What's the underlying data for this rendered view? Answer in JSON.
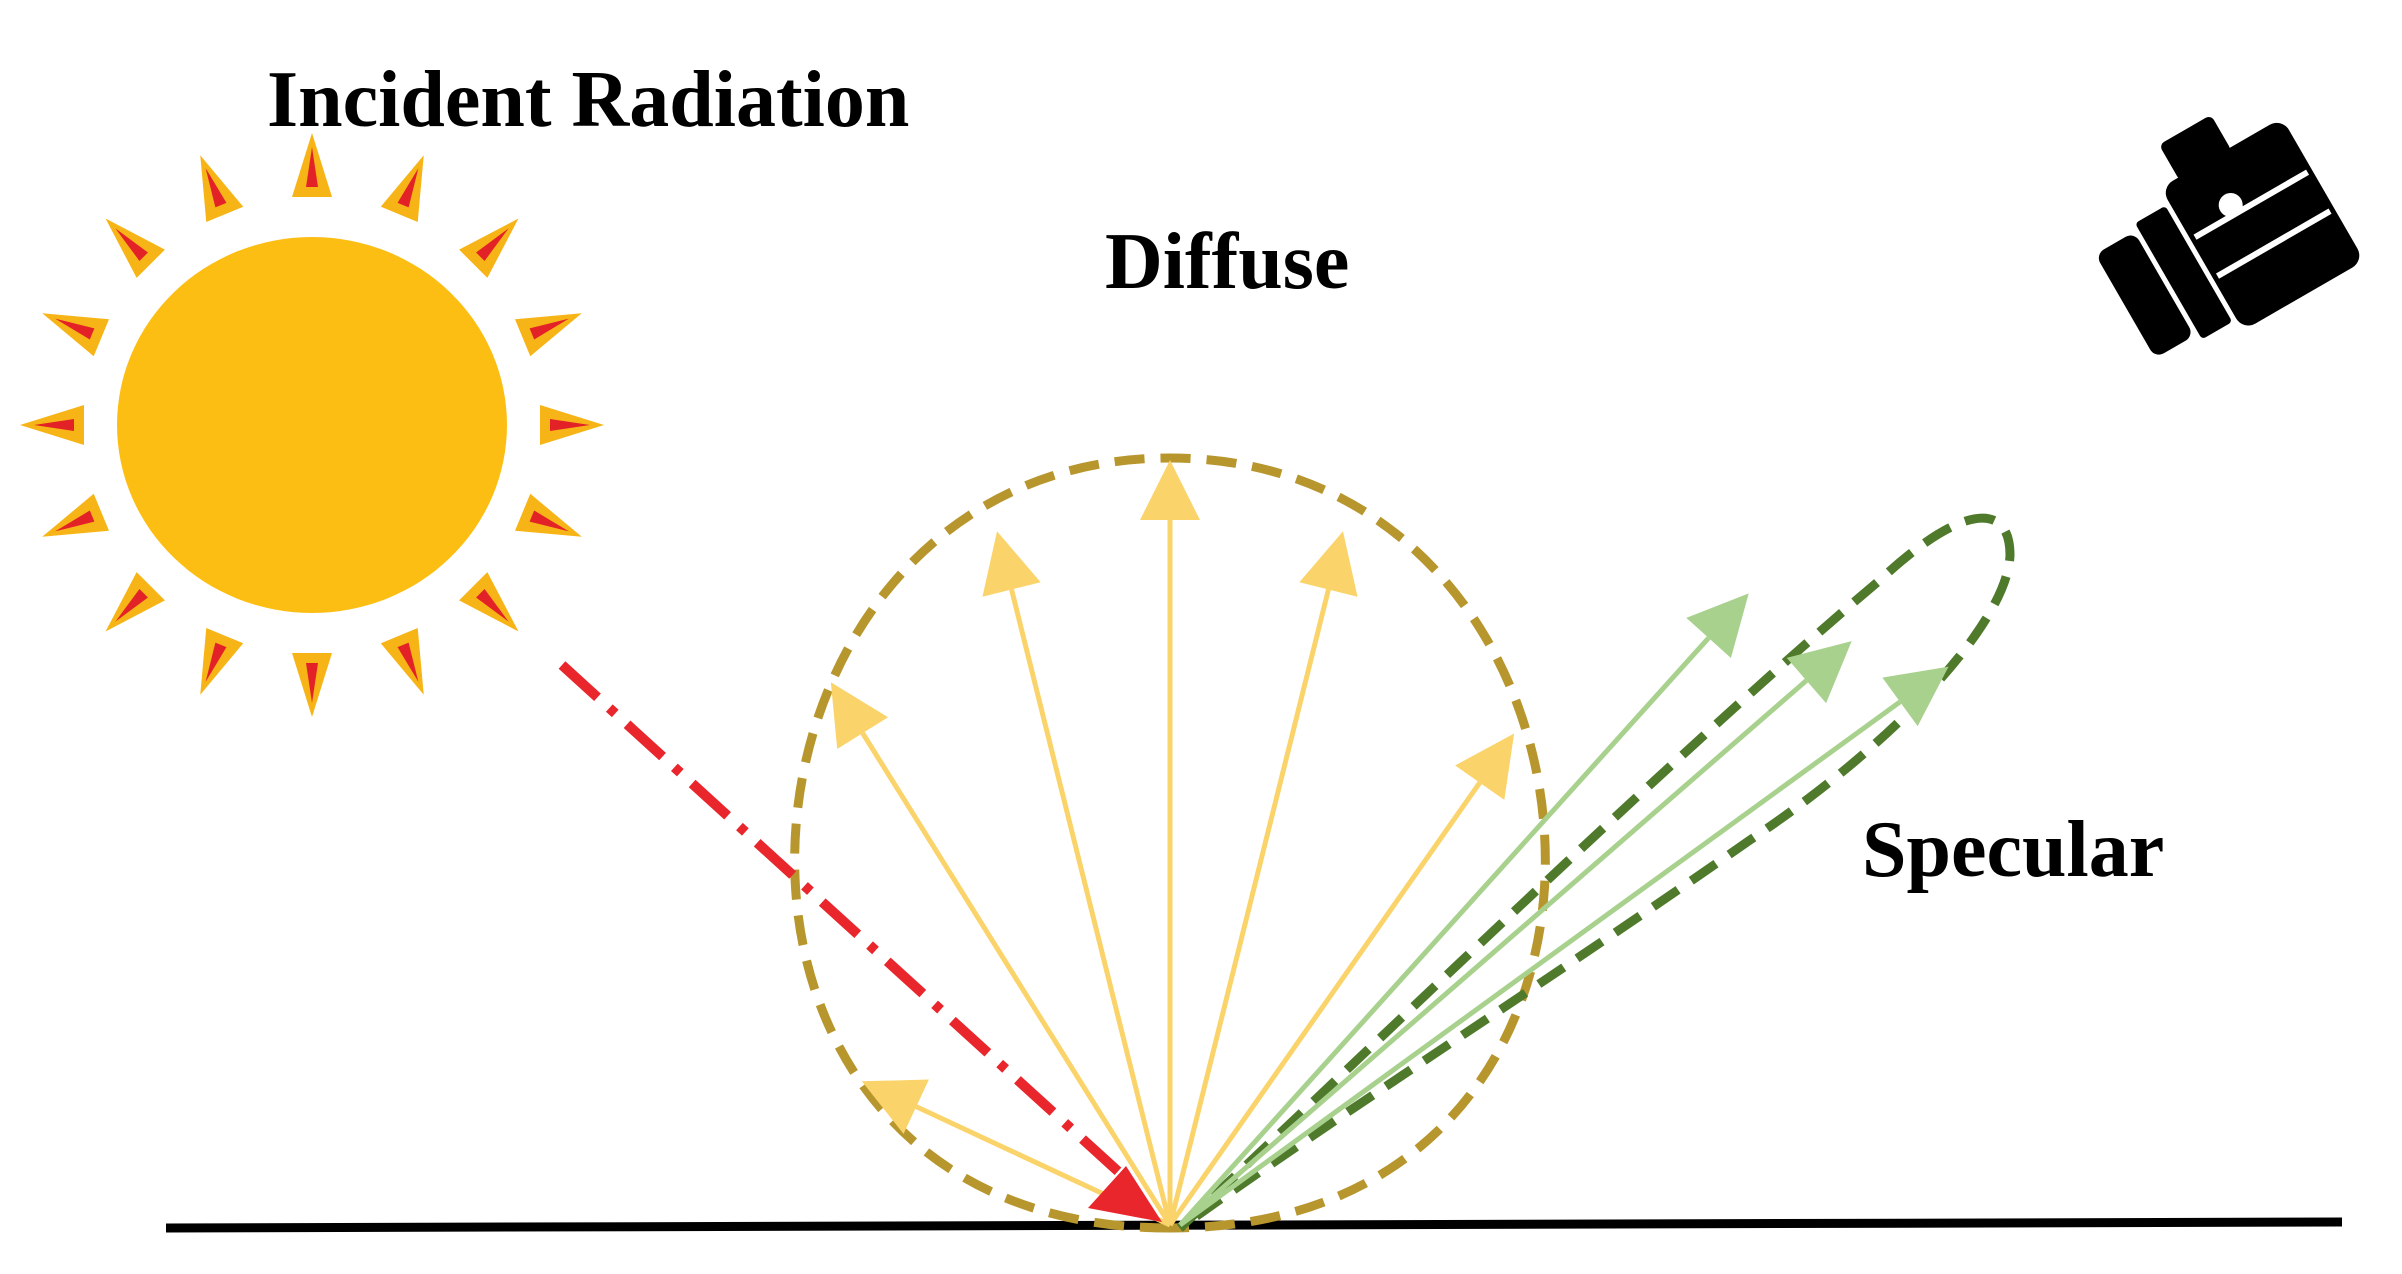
{
  "labels": {
    "incident": "Incident Radiation",
    "diffuse": "Diffuse",
    "specular": "Specular"
  },
  "icons": {
    "sun": "sun-icon",
    "camera": "camera-icon"
  },
  "colors": {
    "sun_body": "#FDBE14",
    "sun_ray": "#F7B417",
    "sun_ray_core": "#E32227",
    "incident_ray": "#E8262C",
    "diffuse_envelope": "#B8962E",
    "diffuse_arrow": "#FAD46A",
    "specular_envelope": "#4F7A2B",
    "specular_arrow": "#A9D18E",
    "surface": "#000000",
    "camera": "#000000"
  },
  "diffuse_arrow_angles_deg": [
    155,
    122,
    104,
    90,
    76,
    55
  ],
  "specular_arrow_angles_deg": [
    48,
    41,
    36
  ]
}
